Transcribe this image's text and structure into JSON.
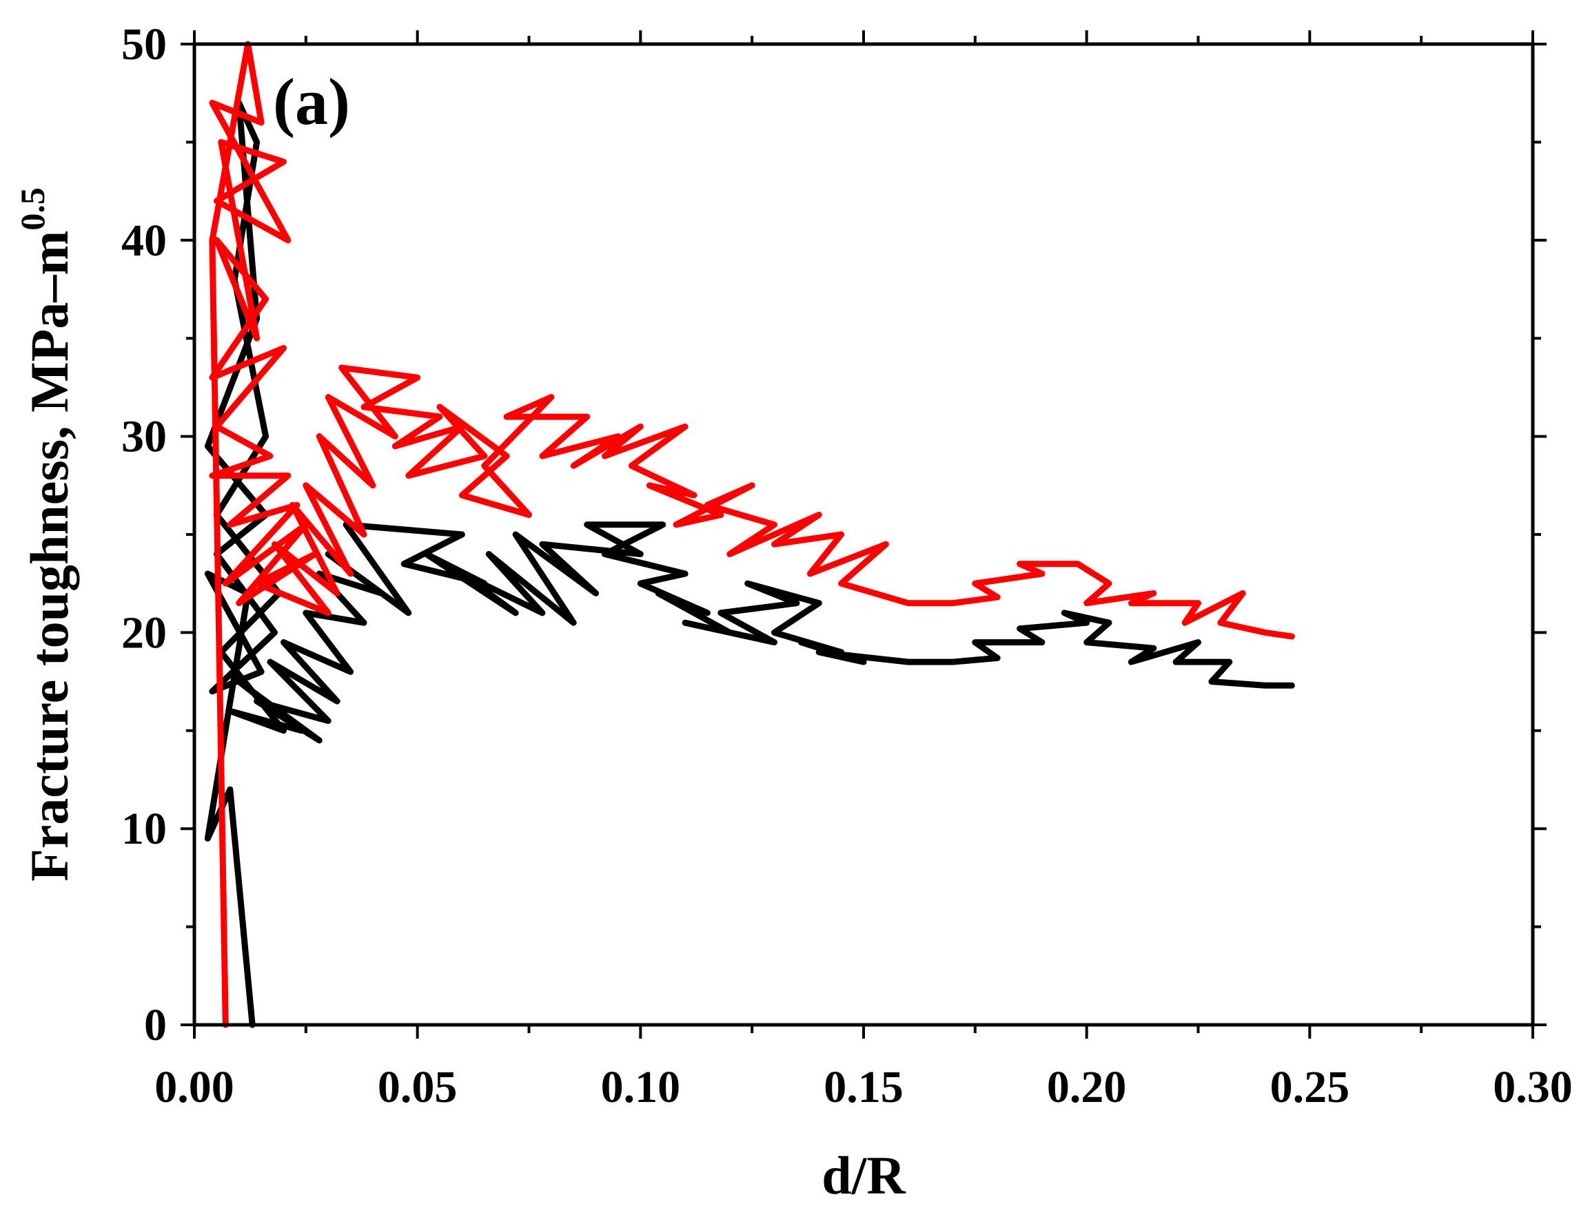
{
  "chart_data": {
    "type": "line",
    "panel_label": "(a)",
    "xlabel": "d/R",
    "ylabel": "Fracture toughness, MPa–m",
    "ylabel_superscript": "0.5",
    "xlim": [
      0,
      0.3
    ],
    "ylim": [
      0,
      50
    ],
    "x_ticks": [
      0.0,
      0.05,
      0.1,
      0.15,
      0.2,
      0.25,
      0.3
    ],
    "x_tick_labels": [
      "0.00",
      "0.05",
      "0.10",
      "0.15",
      "0.20",
      "0.25",
      "0.30"
    ],
    "y_ticks": [
      0,
      10,
      20,
      30,
      40,
      50
    ],
    "y_tick_labels": [
      "0",
      "10",
      "20",
      "30",
      "40",
      "50"
    ],
    "grid": false,
    "series": [
      {
        "color": "#000000",
        "points": [
          [
            0.013,
            0
          ],
          [
            0.008,
            12
          ],
          [
            0.003,
            9.5
          ],
          [
            0.012,
            22
          ],
          [
            0.003,
            23
          ],
          [
            0.015,
            18
          ],
          [
            0.004,
            17
          ],
          [
            0.018,
            20
          ],
          [
            0.005,
            24
          ],
          [
            0.016,
            26
          ],
          [
            0.003,
            29.5
          ],
          [
            0.014,
            36
          ],
          [
            0.01,
            47
          ],
          [
            0.014,
            45
          ],
          [
            0.009,
            38
          ],
          [
            0.016,
            30
          ],
          [
            0.005,
            26
          ],
          [
            0.019,
            22
          ],
          [
            0.006,
            19
          ],
          [
            0.02,
            15
          ],
          [
            0.008,
            16
          ],
          [
            0.024,
            15
          ],
          [
            0.01,
            17.5
          ],
          [
            0.028,
            14.5
          ],
          [
            0.014,
            16.5
          ],
          [
            0.03,
            15.5
          ],
          [
            0.017,
            18.5
          ],
          [
            0.032,
            16.5
          ],
          [
            0.02,
            19.5
          ],
          [
            0.035,
            18
          ],
          [
            0.025,
            21
          ],
          [
            0.038,
            20.5
          ],
          [
            0.028,
            23
          ],
          [
            0.042,
            22
          ],
          [
            0.03,
            24
          ],
          [
            0.048,
            21
          ],
          [
            0.034,
            25.5
          ],
          [
            0.06,
            25
          ],
          [
            0.047,
            23.5
          ],
          [
            0.065,
            22.5
          ],
          [
            0.052,
            24
          ],
          [
            0.072,
            21
          ],
          [
            0.06,
            23
          ],
          [
            0.078,
            21
          ],
          [
            0.066,
            24
          ],
          [
            0.085,
            20.5
          ],
          [
            0.072,
            25
          ],
          [
            0.09,
            22
          ],
          [
            0.078,
            24.5
          ],
          [
            0.1,
            24
          ],
          [
            0.088,
            25.5
          ],
          [
            0.105,
            25.5
          ],
          [
            0.092,
            24
          ],
          [
            0.11,
            23
          ],
          [
            0.1,
            22.5
          ],
          [
            0.115,
            21
          ],
          [
            0.104,
            22
          ],
          [
            0.12,
            20
          ],
          [
            0.11,
            20.5
          ],
          [
            0.13,
            19.5
          ],
          [
            0.118,
            21
          ],
          [
            0.135,
            21.5
          ],
          [
            0.124,
            22.5
          ],
          [
            0.14,
            21.5
          ],
          [
            0.13,
            20
          ],
          [
            0.145,
            19
          ],
          [
            0.136,
            19.5
          ],
          [
            0.15,
            18.5
          ],
          [
            0.14,
            19
          ],
          [
            0.16,
            18.5
          ],
          [
            0.17,
            18.5
          ],
          [
            0.18,
            18.7
          ],
          [
            0.175,
            19.5
          ],
          [
            0.19,
            19.5
          ],
          [
            0.185,
            20.2
          ],
          [
            0.2,
            20.5
          ],
          [
            0.195,
            21
          ],
          [
            0.205,
            20.5
          ],
          [
            0.2,
            19.5
          ],
          [
            0.215,
            19.2
          ],
          [
            0.21,
            18.5
          ],
          [
            0.225,
            19.5
          ],
          [
            0.22,
            18.5
          ],
          [
            0.232,
            18.5
          ],
          [
            0.228,
            17.5
          ],
          [
            0.24,
            17.3
          ],
          [
            0.246,
            17.3
          ]
        ]
      },
      {
        "color": "#ff0000",
        "points": [
          [
            0.007,
            0
          ],
          [
            0.004,
            40
          ],
          [
            0.012,
            50
          ],
          [
            0.015,
            46
          ],
          [
            0.004,
            47
          ],
          [
            0.021,
            40
          ],
          [
            0.005,
            42
          ],
          [
            0.02,
            44
          ],
          [
            0.006,
            45
          ],
          [
            0.014,
            35
          ],
          [
            0.005,
            40
          ],
          [
            0.016,
            37
          ],
          [
            0.004,
            33
          ],
          [
            0.02,
            34.5
          ],
          [
            0.005,
            30.5
          ],
          [
            0.017,
            29
          ],
          [
            0.004,
            28
          ],
          [
            0.021,
            28
          ],
          [
            0.008,
            25.5
          ],
          [
            0.023,
            26.5
          ],
          [
            0.007,
            22.5
          ],
          [
            0.025,
            25.5
          ],
          [
            0.01,
            21.5
          ],
          [
            0.027,
            24
          ],
          [
            0.014,
            22.5
          ],
          [
            0.03,
            21
          ],
          [
            0.018,
            24.5
          ],
          [
            0.032,
            22
          ],
          [
            0.022,
            26.5
          ],
          [
            0.035,
            23
          ],
          [
            0.025,
            27.5
          ],
          [
            0.038,
            25
          ],
          [
            0.028,
            30
          ],
          [
            0.04,
            27.5
          ],
          [
            0.03,
            32
          ],
          [
            0.045,
            30
          ],
          [
            0.033,
            33.5
          ],
          [
            0.05,
            33
          ],
          [
            0.038,
            31.5
          ],
          [
            0.055,
            31
          ],
          [
            0.045,
            29.5
          ],
          [
            0.06,
            30.5
          ],
          [
            0.048,
            28
          ],
          [
            0.065,
            29
          ],
          [
            0.055,
            31.5
          ],
          [
            0.07,
            29
          ],
          [
            0.06,
            27
          ],
          [
            0.075,
            26
          ],
          [
            0.065,
            28.5
          ],
          [
            0.08,
            32
          ],
          [
            0.07,
            31
          ],
          [
            0.088,
            31
          ],
          [
            0.078,
            29
          ],
          [
            0.095,
            30
          ],
          [
            0.085,
            28.5
          ],
          [
            0.1,
            30.5
          ],
          [
            0.092,
            29
          ],
          [
            0.11,
            30.5
          ],
          [
            0.098,
            28.5
          ],
          [
            0.112,
            27
          ],
          [
            0.102,
            27.5
          ],
          [
            0.118,
            26
          ],
          [
            0.108,
            25.5
          ],
          [
            0.125,
            27.5
          ],
          [
            0.115,
            26.5
          ],
          [
            0.13,
            25.5
          ],
          [
            0.12,
            24
          ],
          [
            0.14,
            26
          ],
          [
            0.13,
            24.5
          ],
          [
            0.145,
            25
          ],
          [
            0.138,
            23
          ],
          [
            0.155,
            24.5
          ],
          [
            0.145,
            22.5
          ],
          [
            0.16,
            21.5
          ],
          [
            0.17,
            21.5
          ],
          [
            0.18,
            21.8
          ],
          [
            0.175,
            22.5
          ],
          [
            0.19,
            23
          ],
          [
            0.185,
            23.5
          ],
          [
            0.198,
            23.5
          ],
          [
            0.205,
            22.5
          ],
          [
            0.2,
            21.5
          ],
          [
            0.215,
            22
          ],
          [
            0.21,
            21.5
          ],
          [
            0.225,
            21.5
          ],
          [
            0.222,
            20.5
          ],
          [
            0.235,
            22
          ],
          [
            0.23,
            20.5
          ],
          [
            0.24,
            20
          ],
          [
            0.246,
            19.8
          ]
        ]
      }
    ]
  }
}
